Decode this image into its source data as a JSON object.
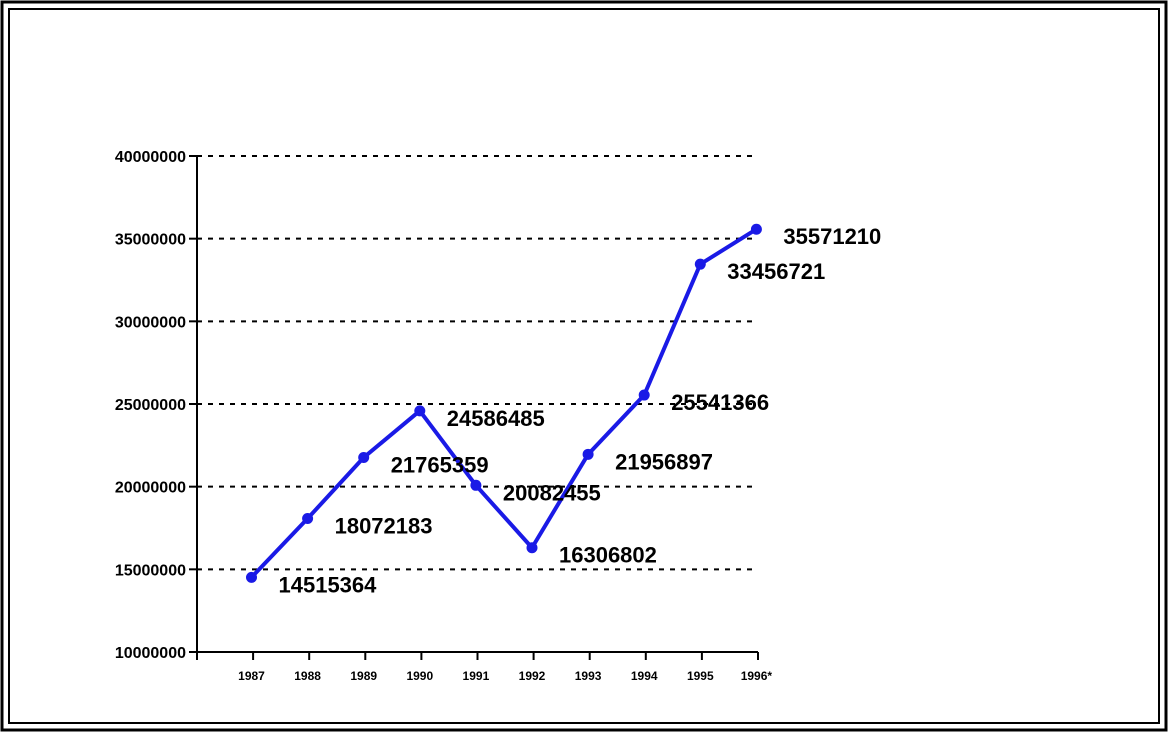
{
  "chart_data": {
    "type": "line",
    "title": "",
    "xlabel": "",
    "ylabel": "",
    "categories": [
      "1987",
      "1988",
      "1989",
      "1990",
      "1991",
      "1992",
      "1993",
      "1994",
      "1995",
      "1996*"
    ],
    "series": [
      {
        "values": [
          14515364,
          18072183,
          21765359,
          24586485,
          20082455,
          16306802,
          21956897,
          25541366,
          33456721,
          35571210
        ],
        "labels": [
          "14515364",
          "18072183",
          "21765359",
          "24586485",
          "20082455",
          "16306802",
          "21956897",
          "25541366",
          "33456721",
          "35571210"
        ]
      }
    ],
    "ylim": [
      10000000,
      40000000
    ],
    "yticks": [
      10000000,
      15000000,
      20000000,
      25000000,
      30000000,
      35000000,
      40000000
    ],
    "ytick_labels": [
      "10000000",
      "15000000",
      "20000000",
      "25000000",
      "30000000",
      "35000000",
      "40000000"
    ],
    "grid": "horizontal dashed",
    "legend": "none",
    "colors": {
      "line": "#1a1ae6",
      "marker": "#1a1ae6",
      "grid": "#000000",
      "axis": "#000000",
      "frame": "#000000"
    }
  }
}
